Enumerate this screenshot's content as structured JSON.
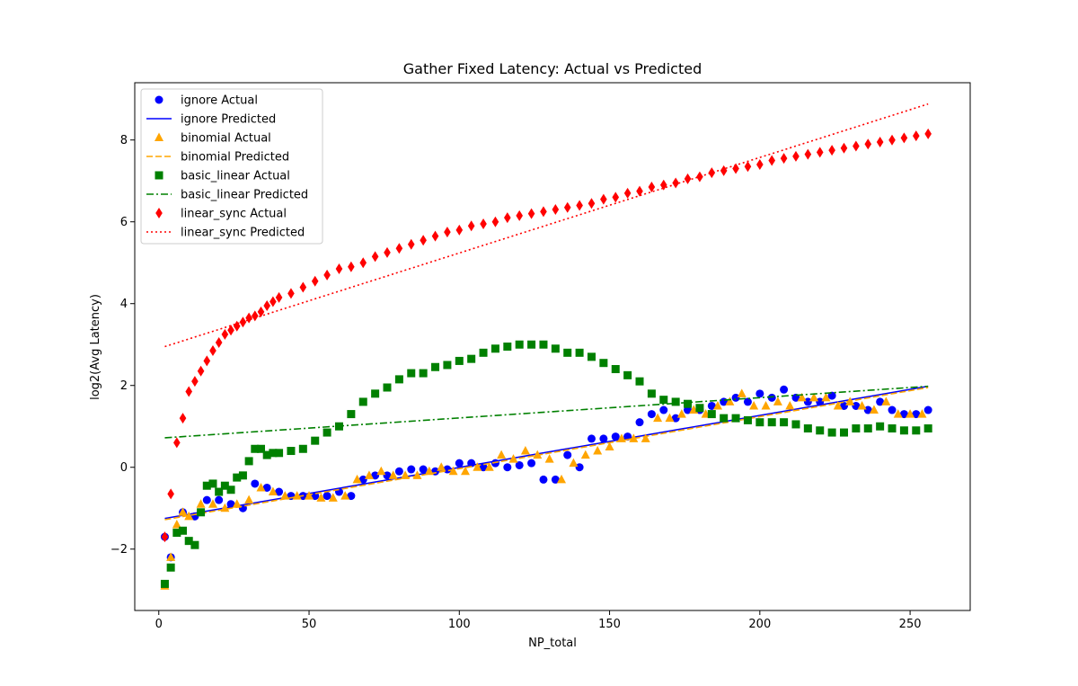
{
  "chart_data": {
    "type": "scatter",
    "title": "Gather Fixed Latency: Actual vs Predicted",
    "xlabel": "NP_total",
    "ylabel": "log2(Avg Latency)",
    "xlim": [
      -8,
      270
    ],
    "ylim": [
      -3.5,
      9.4
    ],
    "xticks": [
      0,
      50,
      100,
      150,
      200,
      250
    ],
    "yticks": [
      -2,
      0,
      2,
      4,
      6,
      8
    ],
    "grid": false,
    "legend_position": "top-left",
    "series": [
      {
        "name": "ignore Actual",
        "kind": "scatter",
        "marker": "circle",
        "color": "#0000ff",
        "x": [
          2,
          4,
          8,
          12,
          16,
          20,
          24,
          28,
          32,
          36,
          40,
          44,
          48,
          52,
          56,
          60,
          64,
          68,
          72,
          76,
          80,
          84,
          88,
          92,
          96,
          100,
          104,
          108,
          112,
          116,
          120,
          124,
          128,
          132,
          136,
          140,
          144,
          148,
          152,
          156,
          160,
          164,
          168,
          172,
          176,
          180,
          184,
          188,
          192,
          196,
          200,
          204,
          208,
          212,
          216,
          220,
          224,
          228,
          232,
          236,
          240,
          244,
          248,
          252,
          256
        ],
        "y": [
          -1.7,
          -2.2,
          -1.1,
          -1.2,
          -0.8,
          -0.8,
          -0.9,
          -1.0,
          -0.4,
          -0.5,
          -0.6,
          -0.7,
          -0.7,
          -0.7,
          -0.7,
          -0.6,
          -0.7,
          -0.3,
          -0.2,
          -0.2,
          -0.1,
          -0.05,
          -0.05,
          -0.1,
          -0.05,
          0.1,
          0.1,
          0.0,
          0.1,
          0.0,
          0.05,
          0.1,
          -0.3,
          -0.3,
          0.3,
          0.0,
          0.7,
          0.7,
          0.75,
          0.75,
          1.1,
          1.3,
          1.4,
          1.2,
          1.4,
          1.4,
          1.5,
          1.6,
          1.7,
          1.6,
          1.8,
          1.7,
          1.9,
          1.7,
          1.6,
          1.6,
          1.75,
          1.5,
          1.5,
          1.4,
          1.6,
          1.4,
          1.3,
          1.3,
          1.4
        ]
      },
      {
        "name": "ignore Predicted",
        "kind": "line",
        "dash": "solid",
        "color": "#0000ff",
        "x": [
          2,
          256
        ],
        "y": [
          -1.25,
          1.98
        ]
      },
      {
        "name": "binomial Actual",
        "kind": "scatter",
        "marker": "triangle",
        "color": "#ffa500",
        "x": [
          2,
          4,
          6,
          8,
          10,
          14,
          18,
          22,
          26,
          30,
          34,
          38,
          42,
          46,
          50,
          54,
          58,
          62,
          66,
          70,
          74,
          78,
          82,
          86,
          90,
          94,
          98,
          102,
          106,
          110,
          114,
          118,
          122,
          126,
          130,
          134,
          138,
          142,
          146,
          150,
          154,
          158,
          162,
          166,
          170,
          174,
          178,
          182,
          186,
          190,
          194,
          198,
          202,
          206,
          210,
          214,
          218,
          222,
          226,
          230,
          234,
          238,
          242,
          246,
          250,
          254
        ],
        "y": [
          -2.9,
          -2.2,
          -1.4,
          -1.1,
          -1.2,
          -0.9,
          -0.9,
          -1.0,
          -0.9,
          -0.8,
          -0.5,
          -0.6,
          -0.7,
          -0.7,
          -0.7,
          -0.75,
          -0.75,
          -0.7,
          -0.3,
          -0.2,
          -0.1,
          -0.2,
          -0.2,
          -0.2,
          -0.1,
          0.0,
          -0.1,
          -0.1,
          0.0,
          0.0,
          0.3,
          0.2,
          0.4,
          0.3,
          0.2,
          -0.3,
          0.1,
          0.3,
          0.4,
          0.5,
          0.7,
          0.7,
          0.7,
          1.2,
          1.2,
          1.3,
          1.4,
          1.3,
          1.5,
          1.6,
          1.8,
          1.5,
          1.5,
          1.6,
          1.5,
          1.7,
          1.7,
          1.7,
          1.5,
          1.6,
          1.5,
          1.4,
          1.6,
          1.3,
          1.3,
          1.3
        ]
      },
      {
        "name": "binomial Predicted",
        "kind": "line",
        "dash": "dashed",
        "color": "#ffa500",
        "x": [
          2,
          256
        ],
        "y": [
          -1.28,
          1.95
        ]
      },
      {
        "name": "basic_linear Actual",
        "kind": "scatter",
        "marker": "square",
        "color": "#008000",
        "x": [
          2,
          4,
          6,
          8,
          10,
          12,
          14,
          16,
          18,
          20,
          22,
          24,
          26,
          28,
          30,
          32,
          34,
          36,
          38,
          40,
          44,
          48,
          52,
          56,
          60,
          64,
          68,
          72,
          76,
          80,
          84,
          88,
          92,
          96,
          100,
          104,
          108,
          112,
          116,
          120,
          124,
          128,
          132,
          136,
          140,
          144,
          148,
          152,
          156,
          160,
          164,
          168,
          172,
          176,
          180,
          184,
          188,
          192,
          196,
          200,
          204,
          208,
          212,
          216,
          220,
          224,
          228,
          232,
          236,
          240,
          244,
          248,
          252,
          256
        ],
        "y": [
          -2.85,
          -2.45,
          -1.6,
          -1.55,
          -1.8,
          -1.9,
          -1.1,
          -0.45,
          -0.4,
          -0.6,
          -0.45,
          -0.55,
          -0.25,
          -0.2,
          0.15,
          0.45,
          0.45,
          0.3,
          0.35,
          0.35,
          0.4,
          0.45,
          0.65,
          0.85,
          1.0,
          1.3,
          1.6,
          1.8,
          1.95,
          2.15,
          2.3,
          2.3,
          2.45,
          2.5,
          2.6,
          2.65,
          2.8,
          2.9,
          2.95,
          3.0,
          3.0,
          3.0,
          2.9,
          2.8,
          2.8,
          2.7,
          2.55,
          2.4,
          2.25,
          2.1,
          1.8,
          1.65,
          1.6,
          1.55,
          1.45,
          1.3,
          1.2,
          1.2,
          1.15,
          1.1,
          1.1,
          1.1,
          1.05,
          0.95,
          0.9,
          0.85,
          0.85,
          0.95,
          0.95,
          1.0,
          0.95,
          0.9,
          0.9,
          0.95
        ]
      },
      {
        "name": "basic_linear Predicted",
        "kind": "line",
        "dash": "dashdot",
        "color": "#008000",
        "x": [
          2,
          256
        ],
        "y": [
          0.72,
          1.98
        ]
      },
      {
        "name": "linear_sync Actual",
        "kind": "scatter",
        "marker": "diamond",
        "color": "#ff0000",
        "x": [
          2,
          4,
          6,
          8,
          10,
          12,
          14,
          16,
          18,
          20,
          22,
          24,
          26,
          28,
          30,
          32,
          34,
          36,
          38,
          40,
          44,
          48,
          52,
          56,
          60,
          64,
          68,
          72,
          76,
          80,
          84,
          88,
          92,
          96,
          100,
          104,
          108,
          112,
          116,
          120,
          124,
          128,
          132,
          136,
          140,
          144,
          148,
          152,
          156,
          160,
          164,
          168,
          172,
          176,
          180,
          184,
          188,
          192,
          196,
          200,
          204,
          208,
          212,
          216,
          220,
          224,
          228,
          232,
          236,
          240,
          244,
          248,
          252,
          256
        ],
        "y": [
          -1.7,
          -0.65,
          0.6,
          1.2,
          1.85,
          2.1,
          2.35,
          2.6,
          2.85,
          3.05,
          3.25,
          3.35,
          3.45,
          3.55,
          3.65,
          3.7,
          3.8,
          3.95,
          4.05,
          4.15,
          4.25,
          4.4,
          4.55,
          4.7,
          4.85,
          4.9,
          5.0,
          5.15,
          5.25,
          5.35,
          5.45,
          5.55,
          5.65,
          5.75,
          5.8,
          5.9,
          5.95,
          6.0,
          6.1,
          6.15,
          6.2,
          6.25,
          6.3,
          6.35,
          6.4,
          6.45,
          6.55,
          6.6,
          6.7,
          6.75,
          6.85,
          6.9,
          6.95,
          7.05,
          7.1,
          7.2,
          7.25,
          7.3,
          7.35,
          7.4,
          7.5,
          7.55,
          7.6,
          7.65,
          7.7,
          7.75,
          7.8,
          7.85,
          7.9,
          7.95,
          8.0,
          8.05,
          8.1,
          8.15
        ]
      },
      {
        "name": "linear_sync Predicted",
        "kind": "line",
        "dash": "dotted",
        "color": "#ff0000",
        "x": [
          2,
          256
        ],
        "y": [
          2.95,
          8.88
        ]
      }
    ]
  }
}
